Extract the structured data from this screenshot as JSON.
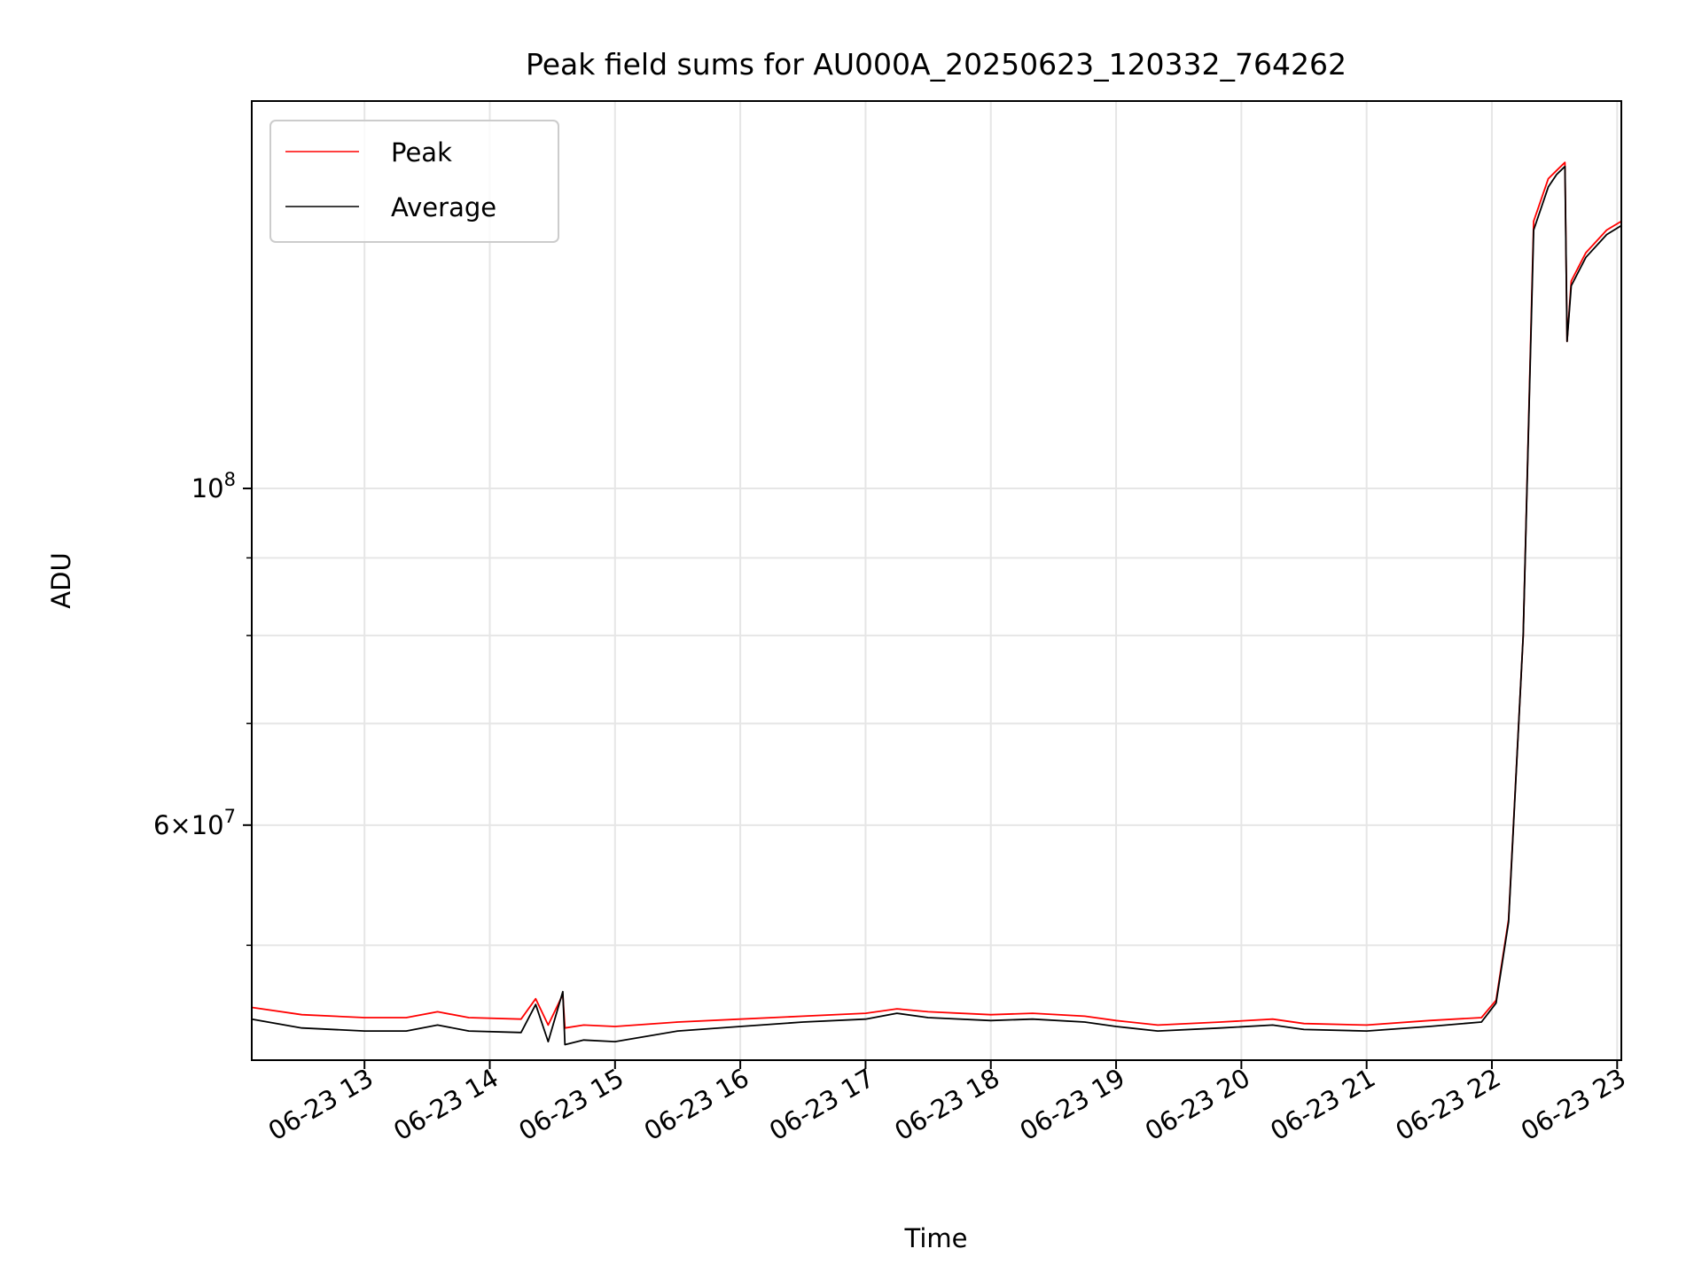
{
  "chart_data": {
    "type": "line",
    "title": "Peak field sums for AU000A_20250623_120332_764262",
    "xlabel": "Time",
    "ylabel": "ADU",
    "yscale": "log",
    "ylim": [
      42000000,
      180000000
    ],
    "xlim": [
      "2025-06-23 12:06",
      "2025-06-23 23:02"
    ],
    "grid": true,
    "legend_position": "top-left",
    "x_tick_labels": [
      "06-23 13",
      "06-23 14",
      "06-23 15",
      "06-23 16",
      "06-23 17",
      "06-23 18",
      "06-23 19",
      "06-23 20",
      "06-23 21",
      "06-23 22",
      "06-23 23"
    ],
    "x_ticks": [
      "2025-06-23 13:00",
      "2025-06-23 14:00",
      "2025-06-23 15:00",
      "2025-06-23 16:00",
      "2025-06-23 17:00",
      "2025-06-23 18:00",
      "2025-06-23 19:00",
      "2025-06-23 20:00",
      "2025-06-23 21:00",
      "2025-06-23 22:00",
      "2025-06-23 23:00"
    ],
    "y_major_ticks": [
      {
        "value": 60000000,
        "mantissa": "6",
        "exponent": "7"
      },
      {
        "value": 100000000,
        "mantissa": "",
        "exponent": "8"
      }
    ],
    "y_minor_ticks": [
      50000000,
      70000000,
      80000000,
      90000000
    ],
    "series": [
      {
        "name": "Peak",
        "color": "#ff0000",
        "x": [
          "2025-06-23 12:06",
          "2025-06-23 12:30",
          "2025-06-23 13:00",
          "2025-06-23 13:20",
          "2025-06-23 13:35",
          "2025-06-23 13:50",
          "2025-06-23 14:15",
          "2025-06-23 14:22",
          "2025-06-23 14:28",
          "2025-06-23 14:35",
          "2025-06-23 14:36",
          "2025-06-23 14:45",
          "2025-06-23 15:00",
          "2025-06-23 15:30",
          "2025-06-23 16:00",
          "2025-06-23 16:30",
          "2025-06-23 17:00",
          "2025-06-23 17:15",
          "2025-06-23 17:30",
          "2025-06-23 18:00",
          "2025-06-23 18:20",
          "2025-06-23 18:45",
          "2025-06-23 19:00",
          "2025-06-23 19:20",
          "2025-06-23 19:50",
          "2025-06-23 20:15",
          "2025-06-23 20:30",
          "2025-06-23 21:00",
          "2025-06-23 21:30",
          "2025-06-23 21:55",
          "2025-06-23 22:02",
          "2025-06-23 22:08",
          "2025-06-23 22:15",
          "2025-06-23 22:20",
          "2025-06-23 22:27",
          "2025-06-23 22:31",
          "2025-06-23 22:35",
          "2025-06-23 22:36",
          "2025-06-23 22:38",
          "2025-06-23 22:45",
          "2025-06-23 22:55",
          "2025-06-23 23:02"
        ],
        "y": [
          45500000,
          45000000,
          44800000,
          44800000,
          45200000,
          44800000,
          44700000,
          46100000,
          44300000,
          46400000,
          44100000,
          44300000,
          44200000,
          44500000,
          44700000,
          44900000,
          45100000,
          45400000,
          45200000,
          45000000,
          45100000,
          44900000,
          44600000,
          44300000,
          44500000,
          44700000,
          44400000,
          44300000,
          44600000,
          44800000,
          46000000,
          52000000,
          80000000,
          150000000,
          160000000,
          162000000,
          164000000,
          125000000,
          137000000,
          143000000,
          148000000,
          150000000
        ]
      },
      {
        "name": "Average",
        "color": "#000000",
        "x": [
          "2025-06-23 12:06",
          "2025-06-23 12:30",
          "2025-06-23 13:00",
          "2025-06-23 13:20",
          "2025-06-23 13:35",
          "2025-06-23 13:50",
          "2025-06-23 14:15",
          "2025-06-23 14:22",
          "2025-06-23 14:28",
          "2025-06-23 14:35",
          "2025-06-23 14:36",
          "2025-06-23 14:45",
          "2025-06-23 15:00",
          "2025-06-23 15:30",
          "2025-06-23 16:00",
          "2025-06-23 16:30",
          "2025-06-23 17:00",
          "2025-06-23 17:15",
          "2025-06-23 17:30",
          "2025-06-23 18:00",
          "2025-06-23 18:20",
          "2025-06-23 18:45",
          "2025-06-23 19:00",
          "2025-06-23 19:20",
          "2025-06-23 19:50",
          "2025-06-23 20:15",
          "2025-06-23 20:30",
          "2025-06-23 21:00",
          "2025-06-23 21:30",
          "2025-06-23 21:55",
          "2025-06-23 22:02",
          "2025-06-23 22:08",
          "2025-06-23 22:15",
          "2025-06-23 22:20",
          "2025-06-23 22:27",
          "2025-06-23 22:31",
          "2025-06-23 22:35",
          "2025-06-23 22:36",
          "2025-06-23 22:38",
          "2025-06-23 22:45",
          "2025-06-23 22:55",
          "2025-06-23 23:02"
        ],
        "y": [
          44700000,
          44100000,
          43900000,
          43900000,
          44300000,
          43900000,
          43800000,
          45700000,
          43200000,
          46600000,
          43000000,
          43300000,
          43200000,
          43900000,
          44200000,
          44500000,
          44700000,
          45100000,
          44800000,
          44600000,
          44700000,
          44500000,
          44200000,
          43900000,
          44100000,
          44300000,
          44000000,
          43900000,
          44200000,
          44500000,
          45800000,
          51800000,
          80000000,
          148000000,
          158000000,
          161000000,
          163000000,
          125000000,
          136000000,
          142000000,
          147000000,
          149000000
        ]
      }
    ]
  }
}
